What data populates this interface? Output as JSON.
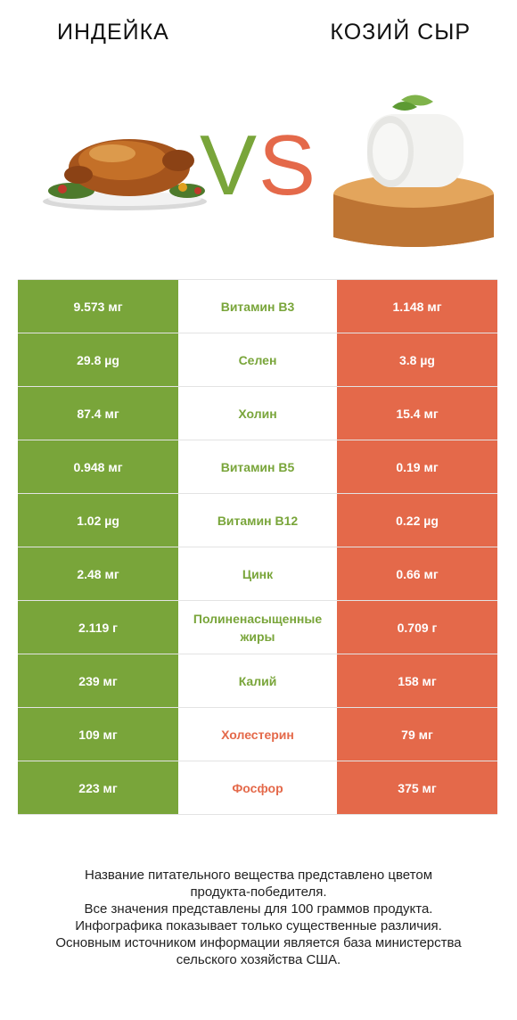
{
  "header": {
    "left_title": "ИНДЕЙКА",
    "right_title": "КОЗИЙ СЫР",
    "vs_v": "V",
    "vs_s": "S"
  },
  "colors": {
    "green": "#79a53a",
    "red": "#e4694a"
  },
  "rows": [
    {
      "left": "9.573 мг",
      "name": "Витамин B3",
      "right": "1.148 мг",
      "winner": "left"
    },
    {
      "left": "29.8 µg",
      "name": "Селен",
      "right": "3.8 µg",
      "winner": "left"
    },
    {
      "left": "87.4 мг",
      "name": "Холин",
      "right": "15.4 мг",
      "winner": "left"
    },
    {
      "left": "0.948 мг",
      "name": "Витамин B5",
      "right": "0.19 мг",
      "winner": "left"
    },
    {
      "left": "1.02 µg",
      "name": "Витамин B12",
      "right": "0.22 µg",
      "winner": "left"
    },
    {
      "left": "2.48 мг",
      "name": "Цинк",
      "right": "0.66 мг",
      "winner": "left"
    },
    {
      "left": "2.119 г",
      "name": "Полиненасыщенные жиры",
      "right": "0.709 г",
      "winner": "left"
    },
    {
      "left": "239 мг",
      "name": "Калий",
      "right": "158 мг",
      "winner": "left"
    },
    {
      "left": "109 мг",
      "name": "Холестерин",
      "right": "79 мг",
      "winner": "right"
    },
    {
      "left": "223 мг",
      "name": "Фосфор",
      "right": "375 мг",
      "winner": "right"
    }
  ],
  "footer": {
    "line1": "Название питательного вещества представлено цветом",
    "line2": "продукта-победителя.",
    "line3": "Все значения представлены для 100 граммов продукта.",
    "line4": "Инфографика показывает только существенные различия.",
    "line5": "Основным источником информации является база министерства",
    "line6": "сельского хозяйства США."
  }
}
